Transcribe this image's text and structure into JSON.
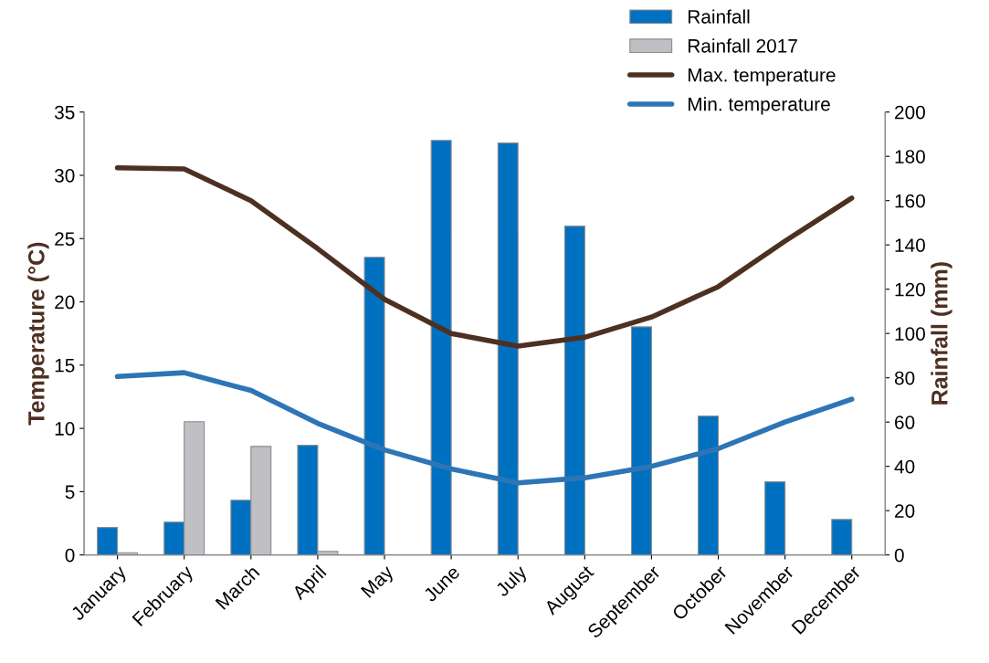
{
  "chart_data": {
    "type": "bar",
    "categories": [
      "January",
      "February",
      "March",
      "April",
      "May",
      "June",
      "July",
      "August",
      "September",
      "October",
      "November",
      "December"
    ],
    "ylabel": "Temperature (°C)",
    "y2label": "Rainfall (mm)",
    "ylim": [
      0,
      35
    ],
    "yticks": [
      0,
      5,
      10,
      15,
      20,
      25,
      30,
      35
    ],
    "y2lim": [
      0,
      200
    ],
    "y2ticks": [
      0,
      20,
      40,
      60,
      80,
      100,
      120,
      140,
      160,
      180,
      200
    ],
    "grid": false,
    "legend": "top right",
    "series": [
      {
        "name": "Rainfall",
        "axis": "y2",
        "color": "#0070c0",
        "values": [
          12.4,
          14.8,
          24.7,
          49.5,
          134.4,
          187.2,
          186,
          148.5,
          103,
          62.7,
          33,
          16
        ]
      },
      {
        "name": "Rainfall 2017",
        "axis": "y2",
        "color": "#bfbfc4",
        "values": [
          1,
          60.2,
          49,
          1.6,
          null,
          null,
          null,
          null,
          null,
          null,
          null,
          null
        ]
      },
      {
        "name": "Max. temperature",
        "type": "line",
        "color": "#4d3021",
        "values": [
          30.6,
          30.5,
          28.0,
          24.2,
          20.2,
          17.5,
          16.5,
          17.2,
          18.8,
          21.2,
          24.8,
          28.2
        ]
      },
      {
        "name": "Min. temperature",
        "type": "line",
        "color": "#2e75b6",
        "values": [
          14.1,
          14.4,
          13.0,
          10.4,
          8.3,
          6.8,
          5.7,
          6.1,
          7.0,
          8.4,
          10.5,
          12.3
        ]
      }
    ]
  }
}
